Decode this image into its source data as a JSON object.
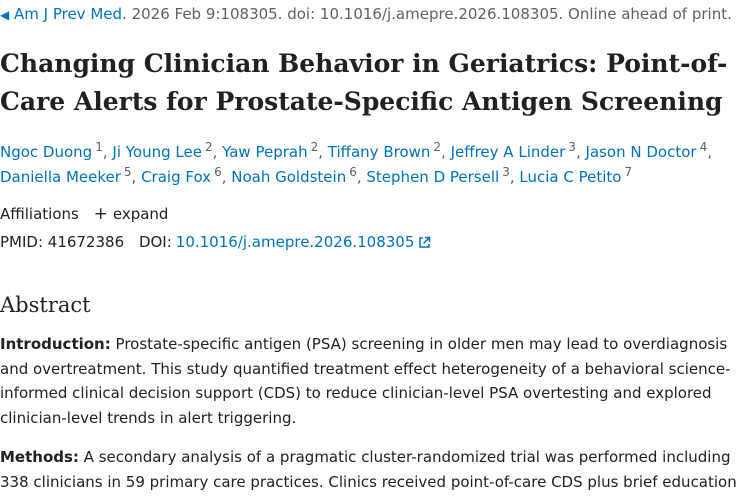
{
  "citation": {
    "journal": "Am J Prev Med",
    "details": ". 2026 Feb 9:108305. doi: 10.1016/j.amepre.2026.108305. Online ahead of print."
  },
  "article": {
    "title": "Changing Clinician Behavior in Geriatrics: Point-of-Care Alerts for Prostate-Specific Antigen Screening"
  },
  "authors": [
    {
      "name": "Ngoc Duong",
      "aff": "1"
    },
    {
      "name": "Ji Young Lee",
      "aff": "2"
    },
    {
      "name": "Yaw Peprah",
      "aff": "2"
    },
    {
      "name": "Tiffany Brown",
      "aff": "2"
    },
    {
      "name": "Jeffrey A Linder",
      "aff": "3"
    },
    {
      "name": "Jason N Doctor",
      "aff": "4"
    },
    {
      "name": "Daniella Meeker",
      "aff": "5"
    },
    {
      "name": "Craig Fox",
      "aff": "6"
    },
    {
      "name": "Noah Goldstein",
      "aff": "6"
    },
    {
      "name": "Stephen D Persell",
      "aff": "3"
    },
    {
      "name": "Lucia C Petito",
      "aff": "7"
    }
  ],
  "affiliations": {
    "label": "Affiliations",
    "expand_label": "expand"
  },
  "identifiers": {
    "pmid_label": "PMID:",
    "pmid": "41672386",
    "doi_label": "DOI:",
    "doi": "10.1016/j.amepre.2026.108305"
  },
  "abstract": {
    "heading": "Abstract",
    "introduction_label": "Introduction:",
    "introduction_text": "Prostate-specific antigen (PSA) screening in older men may lead to overdiagnosis and overtreatment. This study quantified treatment effect heterogeneity of a behavioral science-informed clinical decision support (CDS) to reduce clinician-level PSA overtesting and explored clinician-level trends in alert triggering.",
    "methods_label": "Methods:",
    "methods_text": "A secondary analysis of a pragmatic cluster-randomized trial was performed including 338 clinicians in 59 primary care practices. Clinics received point-of-care CDS plus brief education"
  },
  "colors": {
    "link": "#0071bc",
    "text": "#212121",
    "muted": "#5b616b"
  },
  "icons": {
    "back": "triangle-left-icon",
    "expand": "plus-icon",
    "external": "external-link-icon"
  }
}
